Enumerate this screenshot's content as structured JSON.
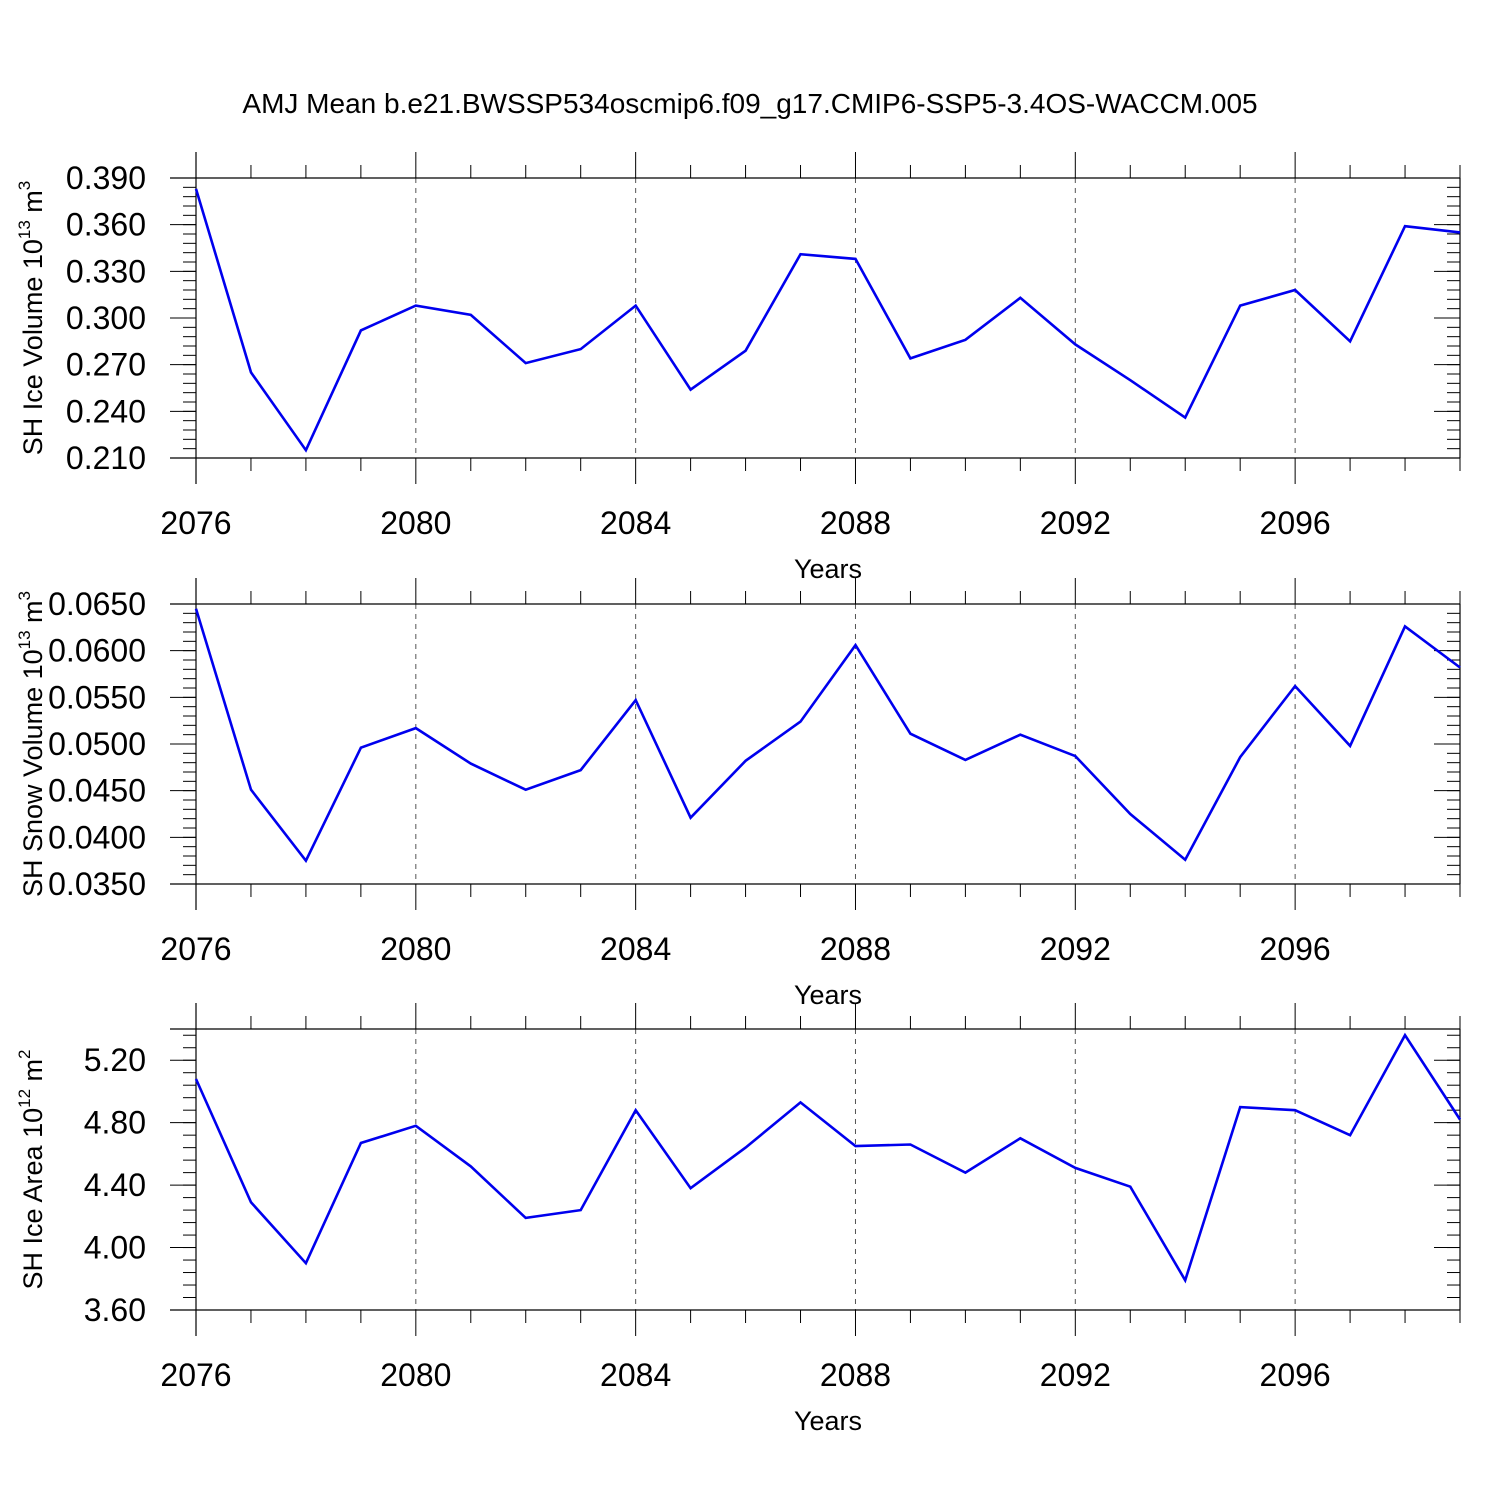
{
  "figure_title": "AMJ Mean b.e21.BWSSP534oscmip6.f09_g17.CMIP6-SSP5-3.4OS-WACCM.005",
  "chart_data": [
    {
      "type": "line",
      "title": "",
      "xlabel": "Years",
      "ylabel": {
        "text": "SH Ice Volume 10",
        "exp": "13",
        "unit": " m",
        "unit_exp": "3"
      },
      "xlim": [
        2076,
        2099
      ],
      "xticks": [
        2076,
        2080,
        2084,
        2088,
        2092,
        2096
      ],
      "ylim": [
        0.21,
        0.39
      ],
      "yticks": [
        0.21,
        0.24,
        0.27,
        0.3,
        0.33,
        0.36,
        0.39
      ],
      "ytick_labels": [
        "0.210",
        "0.240",
        "0.270",
        "0.300",
        "0.330",
        "0.360",
        "0.390"
      ],
      "grid": "x-dashed",
      "line_color": "#0000ee",
      "series": [
        {
          "x": [
            2076,
            2077,
            2078,
            2079,
            2080,
            2081,
            2082,
            2083,
            2084,
            2085,
            2086,
            2087,
            2088,
            2089,
            2090,
            2091,
            2092,
            2093,
            2094,
            2095,
            2096,
            2097,
            2098,
            2099
          ],
          "values": [
            0.383,
            0.265,
            0.215,
            0.292,
            0.308,
            0.302,
            0.271,
            0.28,
            0.308,
            0.254,
            0.279,
            0.341,
            0.338,
            0.274,
            0.286,
            0.313,
            0.283,
            0.26,
            0.236,
            0.308,
            0.318,
            0.285,
            0.359,
            0.355
          ]
        }
      ]
    },
    {
      "type": "line",
      "title": "",
      "xlabel": "Years",
      "ylabel": {
        "text": "SH Snow Volume 10",
        "exp": "13",
        "unit": " m",
        "unit_exp": "3"
      },
      "xlim": [
        2076,
        2099
      ],
      "xticks": [
        2076,
        2080,
        2084,
        2088,
        2092,
        2096
      ],
      "ylim": [
        0.035,
        0.065
      ],
      "yticks": [
        0.035,
        0.04,
        0.045,
        0.05,
        0.055,
        0.06,
        0.065
      ],
      "ytick_labels": [
        "0.0350",
        "0.0400",
        "0.0450",
        "0.0500",
        "0.0550",
        "0.0600",
        "0.0650"
      ],
      "grid": "x-dashed",
      "line_color": "#0000ee",
      "series": [
        {
          "x": [
            2076,
            2077,
            2078,
            2079,
            2080,
            2081,
            2082,
            2083,
            2084,
            2085,
            2086,
            2087,
            2088,
            2089,
            2090,
            2091,
            2092,
            2093,
            2094,
            2095,
            2096,
            2097,
            2098,
            2099
          ],
          "values": [
            0.0645,
            0.0451,
            0.0375,
            0.0496,
            0.0517,
            0.0479,
            0.0451,
            0.0472,
            0.0547,
            0.0421,
            0.0482,
            0.0524,
            0.0606,
            0.0511,
            0.0483,
            0.051,
            0.0487,
            0.0425,
            0.0376,
            0.0486,
            0.0562,
            0.0498,
            0.0626,
            0.0582
          ]
        }
      ]
    },
    {
      "type": "line",
      "title": "",
      "xlabel": "Years",
      "ylabel": {
        "text": "SH Ice Area 10",
        "exp": "12",
        "unit": " m",
        "unit_exp": "2"
      },
      "xlim": [
        2076,
        2099
      ],
      "xticks": [
        2076,
        2080,
        2084,
        2088,
        2092,
        2096
      ],
      "ylim": [
        3.6,
        5.4
      ],
      "yticks": [
        3.6,
        4.0,
        4.4,
        4.8,
        5.2
      ],
      "ytick_labels": [
        "3.60",
        "4.00",
        "4.40",
        "4.80",
        "5.20"
      ],
      "grid": "x-dashed",
      "line_color": "#0000ee",
      "series": [
        {
          "x": [
            2076,
            2077,
            2078,
            2079,
            2080,
            2081,
            2082,
            2083,
            2084,
            2085,
            2086,
            2087,
            2088,
            2089,
            2090,
            2091,
            2092,
            2093,
            2094,
            2095,
            2096,
            2097,
            2098,
            2099
          ],
          "values": [
            5.08,
            4.29,
            3.9,
            4.67,
            4.78,
            4.52,
            4.19,
            4.24,
            4.88,
            4.38,
            4.64,
            4.93,
            4.65,
            4.66,
            4.48,
            4.7,
            4.51,
            4.39,
            3.79,
            4.9,
            4.88,
            4.72,
            5.36,
            4.82
          ]
        }
      ]
    }
  ]
}
